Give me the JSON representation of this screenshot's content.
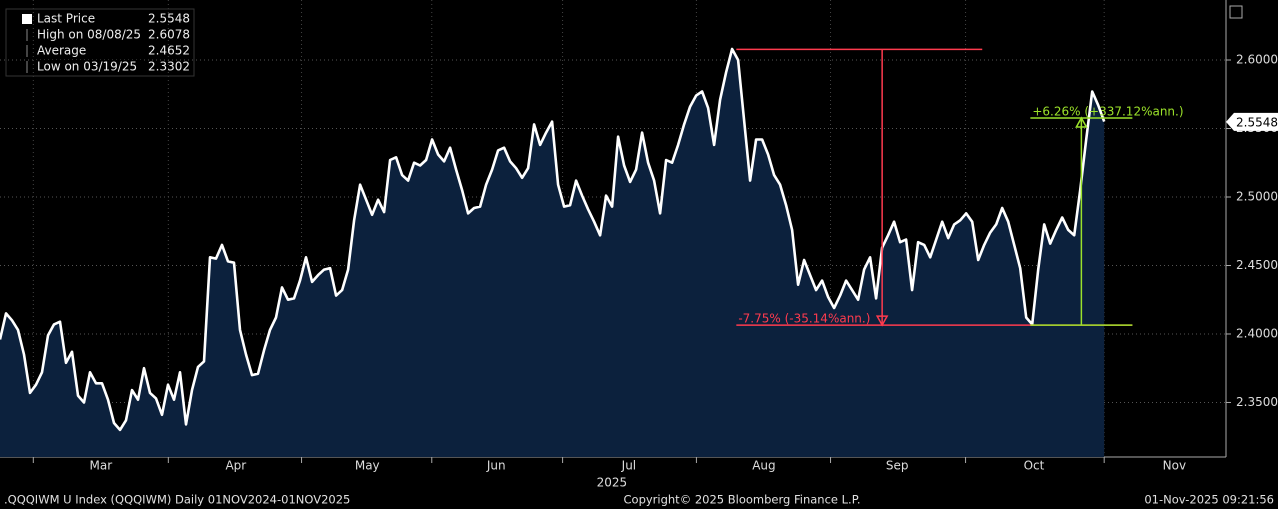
{
  "chart_data": {
    "type": "area",
    "series": [
      {
        "name": "Last Price",
        "color": "#ffffff",
        "fill": "#0c213d",
        "values": [
          2.396,
          2.415,
          2.41,
          2.403,
          2.385,
          2.357,
          2.363,
          2.372,
          2.399,
          2.407,
          2.409,
          2.379,
          2.387,
          2.355,
          2.35,
          2.372,
          2.364,
          2.364,
          2.352,
          2.335,
          2.33,
          2.337,
          2.359,
          2.352,
          2.375,
          2.357,
          2.353,
          2.341,
          2.363,
          2.352,
          2.372,
          2.334,
          2.359,
          2.376,
          2.38,
          2.456,
          2.455,
          2.465,
          2.453,
          2.452,
          2.403,
          2.385,
          2.37,
          2.371,
          2.388,
          2.403,
          2.412,
          2.434,
          2.425,
          2.426,
          2.439,
          2.456,
          2.438,
          2.443,
          2.447,
          2.448,
          2.428,
          2.432,
          2.447,
          2.483,
          2.509,
          2.498,
          2.487,
          2.498,
          2.489,
          2.527,
          2.529,
          2.516,
          2.512,
          2.525,
          2.523,
          2.527,
          2.542,
          2.531,
          2.526,
          2.536,
          2.52,
          2.505,
          2.488,
          2.492,
          2.493,
          2.509,
          2.52,
          2.534,
          2.536,
          2.526,
          2.521,
          2.514,
          2.521,
          2.553,
          2.538,
          2.547,
          2.555,
          2.509,
          2.493,
          2.494,
          2.512,
          2.501,
          2.491,
          2.482,
          2.472,
          2.501,
          2.493,
          2.544,
          2.523,
          2.511,
          2.52,
          2.547,
          2.525,
          2.512,
          2.488,
          2.527,
          2.525,
          2.538,
          2.553,
          2.566,
          2.574,
          2.577,
          2.565,
          2.538,
          2.571,
          2.591,
          2.608,
          2.6,
          2.556,
          2.512,
          2.542,
          2.542,
          2.531,
          2.516,
          2.509,
          2.494,
          2.476,
          2.436,
          2.454,
          2.443,
          2.432,
          2.439,
          2.427,
          2.419,
          2.428,
          2.439,
          2.432,
          2.425,
          2.447,
          2.456,
          2.426,
          2.463,
          2.472,
          2.482,
          2.467,
          2.469,
          2.432,
          2.467,
          2.465,
          2.456,
          2.469,
          2.482,
          2.47,
          2.48,
          2.483,
          2.488,
          2.482,
          2.454,
          2.465,
          2.474,
          2.48,
          2.492,
          2.482,
          2.465,
          2.448,
          2.412,
          2.407,
          2.447,
          2.48,
          2.466,
          2.476,
          2.485,
          2.476,
          2.472,
          2.505,
          2.542,
          2.577,
          2.567,
          2.555
        ]
      }
    ],
    "xlim": [
      0,
      204.3
    ],
    "xticks": [
      {
        "value": 16.8,
        "label": "Mar"
      },
      {
        "value": 39.3,
        "label": "Apr"
      },
      {
        "value": 61.2,
        "label": "May"
      },
      {
        "value": 82.7,
        "label": "Jun"
      },
      {
        "value": 104.8,
        "label": "Jul"
      },
      {
        "value": 127.3,
        "label": "Aug"
      },
      {
        "value": 149.5,
        "label": "Sep"
      },
      {
        "value": 172.3,
        "label": "Oct"
      },
      {
        "value": 195.7,
        "label": "Nov"
      }
    ],
    "year_label": "2025",
    "ylim": [
      2.3102,
      2.6438
    ],
    "yticks": [
      {
        "value": 2.35,
        "label": "2.3500"
      },
      {
        "value": 2.4,
        "label": "2.4000"
      },
      {
        "value": 2.45,
        "label": "2.4500"
      },
      {
        "value": 2.5,
        "label": "2.5000"
      },
      {
        "value": 2.55,
        "label": "2.5500"
      },
      {
        "value": 2.6,
        "label": "2.6000"
      }
    ],
    "grid": true,
    "legend": [
      {
        "label": "Last Price",
        "value": 2.5548
      },
      {
        "label": "High on 08/08/25",
        "value": 2.6078
      },
      {
        "label": "Average",
        "value": 2.4652
      },
      {
        "label": "Low on 03/19/25",
        "value": 2.3302
      }
    ],
    "measures": [
      {
        "label": "-7.75% (-35.14%ann.)",
        "color": "#ff3b4e",
        "from": 2.6078,
        "to": 2.4065,
        "x_from": 122.7,
        "x_mid": 147,
        "x_to": 188.7
      },
      {
        "label": "+6.26% (+337.12%ann.)",
        "color": "#9be22a",
        "from": 2.4065,
        "to": 2.5577,
        "x_from": 171.7,
        "x_mid": 180.2,
        "x_to": 188.7
      }
    ],
    "footer": {
      "left": ".QQQIWM U Index (QQQIWM) Daily 01NOV2024-01NOV2025",
      "center": "Copyright© 2025 Bloomberg Finance L.P.",
      "right": "01-Nov-2025 09:21:56"
    }
  }
}
